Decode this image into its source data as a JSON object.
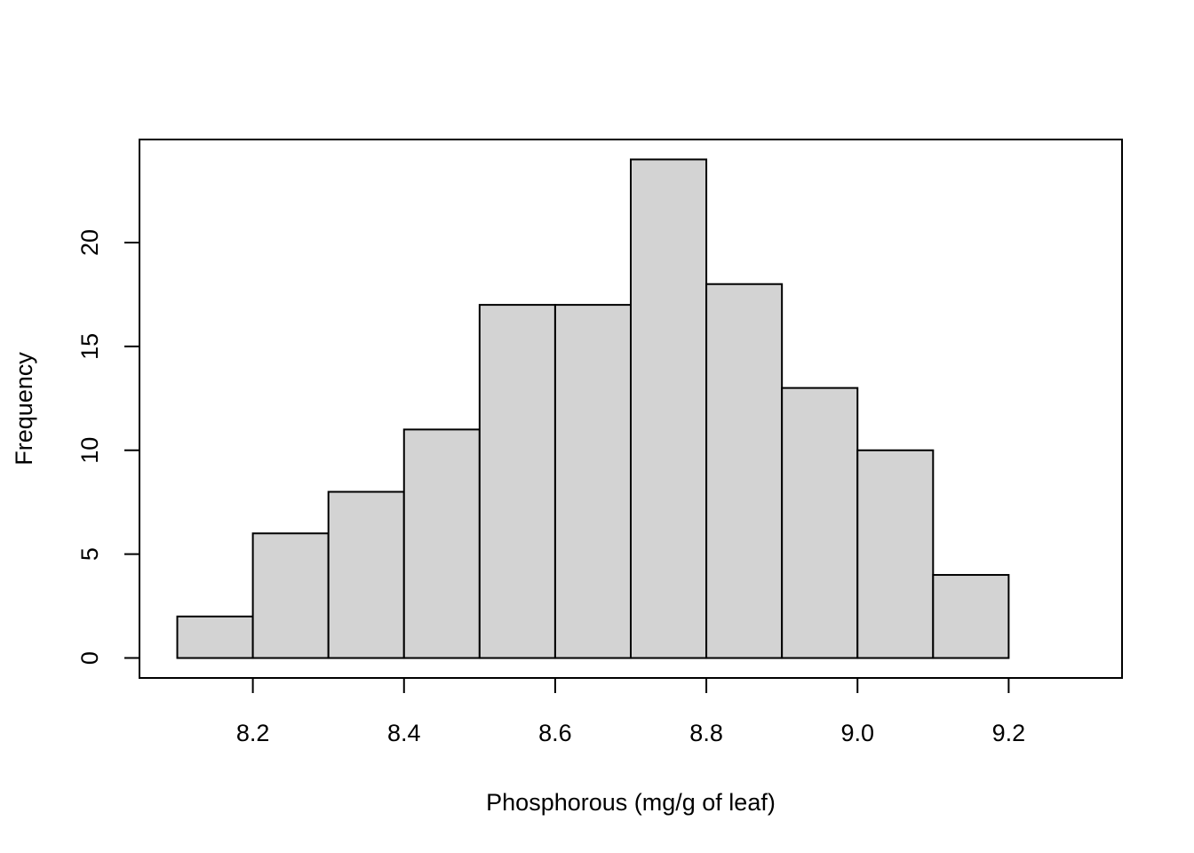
{
  "chart_data": {
    "type": "bar",
    "subtype": "histogram",
    "title": "",
    "xlabel": "Phosphorous (mg/g of leaf)",
    "ylabel": "Frequency",
    "bin_edges": [
      8.1,
      8.2,
      8.3,
      8.4,
      8.5,
      8.6,
      8.7,
      8.8,
      8.9,
      9.0,
      9.1,
      9.2
    ],
    "values": [
      2,
      6,
      8,
      11,
      17,
      17,
      24,
      18,
      13,
      10,
      4
    ],
    "x_ticks": [
      8.2,
      8.4,
      8.6,
      8.8,
      9.0,
      9.2
    ],
    "x_tick_labels": [
      "8.2",
      "8.4",
      "8.6",
      "8.8",
      "9.0",
      "9.2"
    ],
    "y_ticks": [
      0,
      5,
      10,
      15,
      20
    ],
    "y_tick_labels": [
      "0",
      "5",
      "10",
      "15",
      "20"
    ],
    "xlim": [
      8.05,
      9.35
    ],
    "ylim": [
      -0.96,
      24.96
    ],
    "grid": false,
    "legend": "none",
    "bar_fill": "#d3d3d3",
    "bar_stroke": "#000000"
  }
}
